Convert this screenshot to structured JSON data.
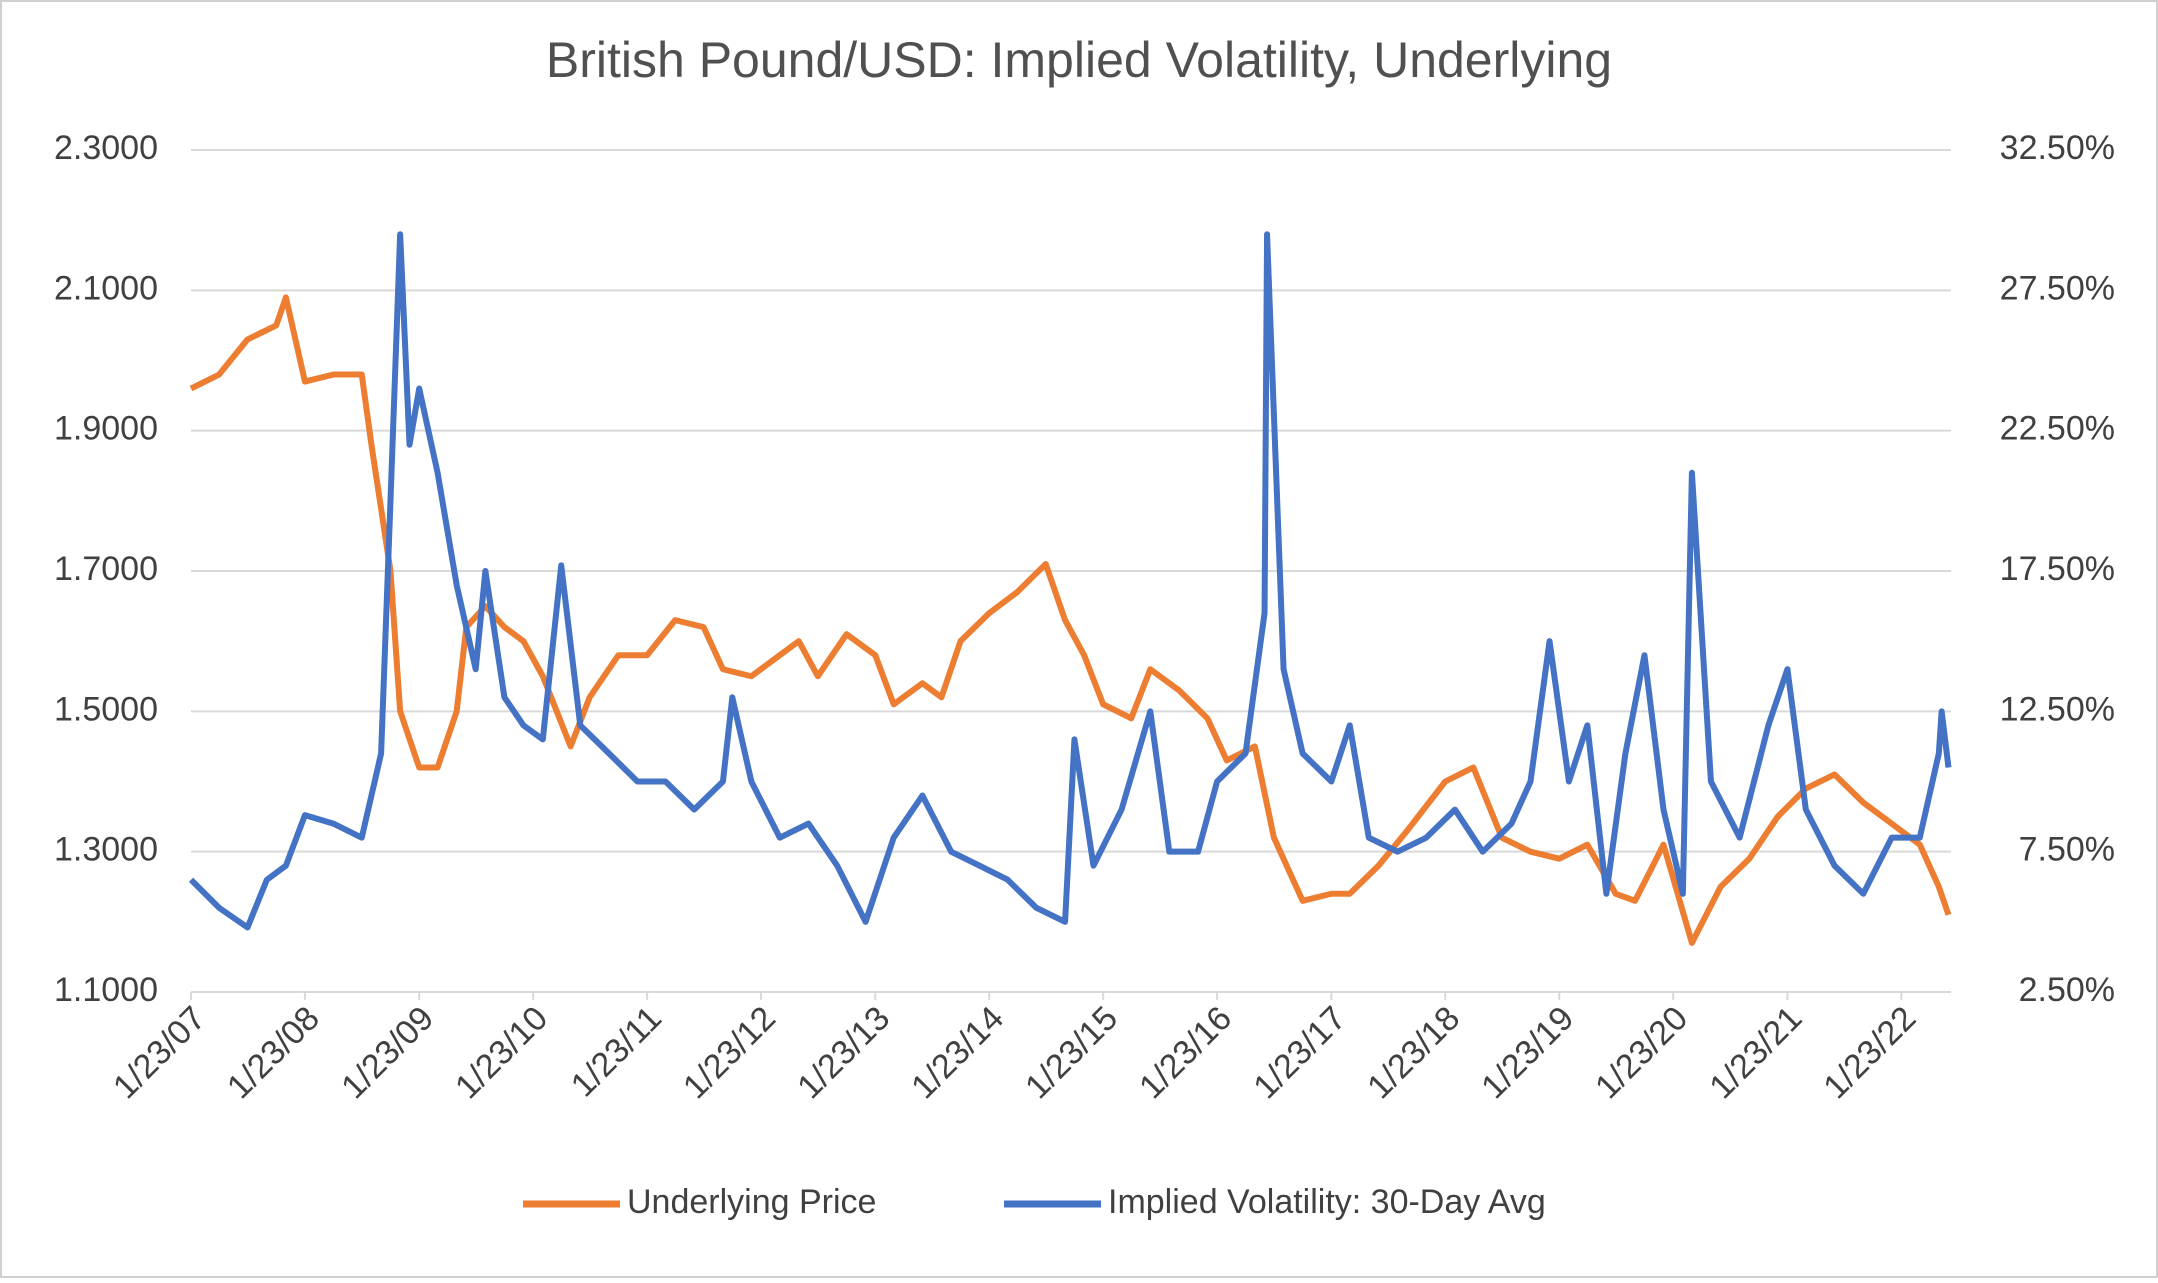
{
  "chart_data": {
    "type": "line",
    "title": "British Pound/USD: Implied Volatility, Underlying",
    "xlim": [
      "2007-01-23",
      "2022-07-01"
    ],
    "xticks": [
      {
        "value": "2007-01-23",
        "label": "1/23/07"
      },
      {
        "value": "2008-01-23",
        "label": "1/23/08"
      },
      {
        "value": "2009-01-23",
        "label": "1/23/09"
      },
      {
        "value": "2010-01-23",
        "label": "1/23/10"
      },
      {
        "value": "2011-01-23",
        "label": "1/23/11"
      },
      {
        "value": "2012-01-23",
        "label": "1/23/12"
      },
      {
        "value": "2013-01-23",
        "label": "1/23/13"
      },
      {
        "value": "2014-01-23",
        "label": "1/23/14"
      },
      {
        "value": "2015-01-23",
        "label": "1/23/15"
      },
      {
        "value": "2016-01-23",
        "label": "1/23/16"
      },
      {
        "value": "2017-01-23",
        "label": "1/23/17"
      },
      {
        "value": "2018-01-23",
        "label": "1/23/18"
      },
      {
        "value": "2019-01-23",
        "label": "1/23/19"
      },
      {
        "value": "2020-01-23",
        "label": "1/23/20"
      },
      {
        "value": "2021-01-23",
        "label": "1/23/21"
      },
      {
        "value": "2022-01-23",
        "label": "1/23/22"
      }
    ],
    "ylim": [
      1.1,
      2.3
    ],
    "yticks": [
      {
        "value": 1.1,
        "label": "1.1000"
      },
      {
        "value": 1.3,
        "label": "1.3000"
      },
      {
        "value": 1.5,
        "label": "1.5000"
      },
      {
        "value": 1.7,
        "label": "1.7000"
      },
      {
        "value": 1.9,
        "label": "1.9000"
      },
      {
        "value": 2.1,
        "label": "2.1000"
      },
      {
        "value": 2.3,
        "label": "2.3000"
      }
    ],
    "y2lim": [
      2.5,
      32.5
    ],
    "y2ticks": [
      {
        "value": 2.5,
        "label": "2.50%"
      },
      {
        "value": 7.5,
        "label": "7.50%"
      },
      {
        "value": 12.5,
        "label": "12.50%"
      },
      {
        "value": 17.5,
        "label": "17.50%"
      },
      {
        "value": 22.5,
        "label": "22.50%"
      },
      {
        "value": 27.5,
        "label": "27.50%"
      },
      {
        "value": 32.5,
        "label": "32.50%"
      }
    ],
    "grid": true,
    "legend": "bottom",
    "series": [
      {
        "name": "Underlying Price",
        "color": "#ed7d31",
        "axis": "y",
        "x": [
          "2007-01-23",
          "2007-04-23",
          "2007-07-23",
          "2007-10-23",
          "2007-11-23",
          "2008-01-23",
          "2008-04-23",
          "2008-07-23",
          "2008-08-23",
          "2008-10-23",
          "2008-11-23",
          "2009-01-23",
          "2009-03-23",
          "2009-05-23",
          "2009-06-23",
          "2009-08-23",
          "2009-10-23",
          "2009-12-23",
          "2010-02-23",
          "2010-05-23",
          "2010-07-23",
          "2010-10-23",
          "2011-01-23",
          "2011-04-23",
          "2011-07-23",
          "2011-09-23",
          "2011-12-23",
          "2012-03-23",
          "2012-05-23",
          "2012-07-23",
          "2012-10-23",
          "2013-01-23",
          "2013-03-23",
          "2013-06-23",
          "2013-08-23",
          "2013-10-23",
          "2014-01-23",
          "2014-04-23",
          "2014-07-23",
          "2014-09-23",
          "2014-11-23",
          "2015-01-23",
          "2015-04-23",
          "2015-06-23",
          "2015-09-23",
          "2015-12-23",
          "2016-02-23",
          "2016-05-23",
          "2016-07-23",
          "2016-10-23",
          "2017-01-23",
          "2017-03-23",
          "2017-06-23",
          "2017-09-23",
          "2018-01-23",
          "2018-04-23",
          "2018-07-23",
          "2018-10-23",
          "2019-01-23",
          "2019-04-23",
          "2019-07-23",
          "2019-09-23",
          "2019-12-23",
          "2020-03-23",
          "2020-06-23",
          "2020-09-23",
          "2020-12-23",
          "2021-03-23",
          "2021-06-23",
          "2021-09-23",
          "2021-12-23",
          "2022-03-23",
          "2022-05-23",
          "2022-06-23"
        ],
        "values": [
          1.96,
          1.98,
          2.03,
          2.05,
          2.09,
          1.97,
          1.98,
          1.98,
          1.88,
          1.7,
          1.5,
          1.42,
          1.42,
          1.5,
          1.62,
          1.65,
          1.62,
          1.6,
          1.55,
          1.45,
          1.52,
          1.58,
          1.58,
          1.63,
          1.62,
          1.56,
          1.55,
          1.58,
          1.6,
          1.55,
          1.61,
          1.58,
          1.51,
          1.54,
          1.52,
          1.6,
          1.64,
          1.67,
          1.71,
          1.63,
          1.58,
          1.51,
          1.49,
          1.56,
          1.53,
          1.49,
          1.43,
          1.45,
          1.32,
          1.23,
          1.24,
          1.24,
          1.28,
          1.33,
          1.4,
          1.42,
          1.32,
          1.3,
          1.29,
          1.31,
          1.24,
          1.23,
          1.31,
          1.17,
          1.25,
          1.29,
          1.35,
          1.39,
          1.41,
          1.37,
          1.34,
          1.31,
          1.25,
          1.21
        ]
      },
      {
        "name": "Implied Volatility: 30-Day Avg",
        "color": "#4472c4",
        "axis": "y2",
        "x": [
          "2007-01-23",
          "2007-04-23",
          "2007-07-23",
          "2007-09-23",
          "2007-11-23",
          "2008-01-23",
          "2008-04-23",
          "2008-07-23",
          "2008-09-23",
          "2008-10-23",
          "2008-11-23",
          "2008-12-23",
          "2009-01-23",
          "2009-03-23",
          "2009-05-23",
          "2009-07-23",
          "2009-08-23",
          "2009-10-23",
          "2009-12-23",
          "2010-02-23",
          "2010-04-23",
          "2010-06-23",
          "2010-09-23",
          "2010-12-23",
          "2011-03-23",
          "2011-06-23",
          "2011-09-23",
          "2011-10-23",
          "2011-12-23",
          "2012-03-23",
          "2012-06-23",
          "2012-09-23",
          "2012-12-23",
          "2013-03-23",
          "2013-06-23",
          "2013-09-23",
          "2013-12-23",
          "2014-03-23",
          "2014-06-23",
          "2014-09-23",
          "2014-10-23",
          "2014-12-23",
          "2015-03-23",
          "2015-06-23",
          "2015-08-23",
          "2015-11-23",
          "2016-01-23",
          "2016-04-23",
          "2016-06-23",
          "2016-07-01",
          "2016-08-23",
          "2016-10-23",
          "2017-01-23",
          "2017-03-23",
          "2017-05-23",
          "2017-08-23",
          "2017-11-23",
          "2018-02-23",
          "2018-05-23",
          "2018-08-23",
          "2018-10-23",
          "2018-12-23",
          "2019-02-23",
          "2019-04-23",
          "2019-06-23",
          "2019-08-23",
          "2019-10-23",
          "2019-12-23",
          "2020-02-23",
          "2020-03-23",
          "2020-05-23",
          "2020-08-23",
          "2020-11-23",
          "2021-01-23",
          "2021-03-23",
          "2021-06-23",
          "2021-09-23",
          "2021-12-23",
          "2022-03-23",
          "2022-05-23",
          "2022-06-01",
          "2022-06-23"
        ],
        "values": [
          6.5,
          5.5,
          4.8,
          6.5,
          7,
          8.8,
          8.5,
          8,
          11,
          20,
          29.5,
          22,
          24,
          21,
          17,
          14,
          17.5,
          13,
          12,
          11.5,
          17.7,
          12,
          11,
          10,
          10,
          9,
          10,
          13,
          10,
          8,
          8.5,
          7,
          5,
          8,
          9.5,
          7.5,
          7,
          6.5,
          5.5,
          5,
          11.5,
          7,
          9,
          12.5,
          7.5,
          7.5,
          10,
          11,
          16,
          29.5,
          14,
          11,
          10,
          12,
          8,
          7.5,
          8,
          9,
          7.5,
          8.5,
          10,
          15,
          10,
          12,
          6,
          11,
          14.5,
          9,
          6,
          21,
          10,
          8,
          12,
          14,
          9,
          7,
          6,
          8,
          8,
          11,
          12.5,
          10.5
        ]
      }
    ]
  }
}
